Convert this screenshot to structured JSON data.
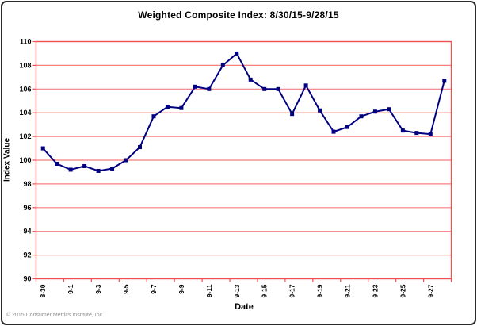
{
  "header": {
    "title": "Weighted Composite Index: 8/30/15-9/28/15"
  },
  "footer": {
    "copyright": "© 2015 Consumer Metrics Institute, Inc."
  },
  "chart_data": {
    "type": "line",
    "title": "Weighted Composite Index: 8/30/15-9/28/15",
    "xlabel": "Date",
    "ylabel": "Index Value",
    "series_name": "Weighted Composite Index",
    "x": [
      "8-30",
      "8-31",
      "9-1",
      "9-2",
      "9-3",
      "9-4",
      "9-5",
      "9-6",
      "9-7",
      "9-8",
      "9-9",
      "9-10",
      "9-11",
      "9-12",
      "9-13",
      "9-14",
      "9-15",
      "9-16",
      "9-17",
      "9-18",
      "9-19",
      "9-20",
      "9-21",
      "9-22",
      "9-23",
      "9-24",
      "9-25",
      "9-26",
      "9-27",
      "9-28"
    ],
    "values": [
      101.0,
      99.7,
      99.2,
      99.5,
      99.1,
      99.3,
      100.0,
      101.1,
      103.7,
      104.5,
      104.4,
      106.2,
      106.0,
      108.0,
      109.0,
      106.8,
      106.0,
      106.0,
      103.9,
      106.3,
      104.2,
      102.4,
      102.8,
      103.7,
      104.1,
      104.3,
      102.5,
      102.3,
      102.2,
      106.7
    ],
    "x_tick_labels": [
      "8-30",
      "9-1",
      "9-3",
      "9-5",
      "9-7",
      "9-9",
      "9-11",
      "9-13",
      "9-15",
      "9-17",
      "9-19",
      "9-21",
      "9-23",
      "9-25",
      "9-27"
    ],
    "y_ticks": [
      90,
      92,
      94,
      96,
      98,
      100,
      102,
      104,
      106,
      108,
      110
    ],
    "ylim": [
      90,
      110
    ],
    "grid": true,
    "legend_position": "none",
    "colors": {
      "line": "#000080",
      "marker": "#000080",
      "grid": "#f57e7e",
      "axis": "#f0504f",
      "tick_label": "#000000"
    }
  }
}
